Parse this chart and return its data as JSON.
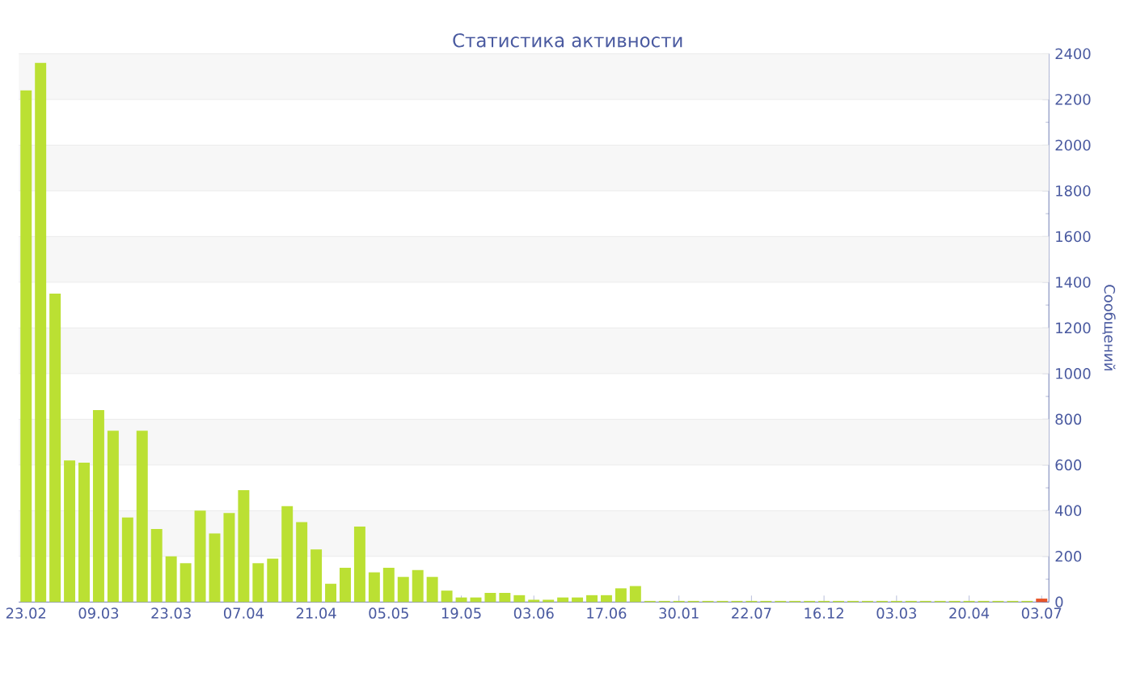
{
  "chart_data": {
    "type": "bar",
    "title": "Статистика активности",
    "ylabel": "Сообщений",
    "categories": [
      "23.02",
      null,
      null,
      null,
      null,
      "09.03",
      null,
      null,
      null,
      null,
      "23.03",
      null,
      null,
      null,
      null,
      "07.04",
      null,
      null,
      null,
      null,
      "21.04",
      null,
      null,
      null,
      null,
      "05.05",
      null,
      null,
      null,
      null,
      "19.05",
      null,
      null,
      null,
      null,
      "03.06",
      null,
      null,
      null,
      null,
      "17.06",
      null,
      null,
      null,
      null,
      "30.01",
      null,
      null,
      null,
      null,
      "22.07",
      null,
      null,
      null,
      null,
      "16.12",
      null,
      null,
      null,
      null,
      "03.03",
      null,
      null,
      null,
      null,
      "20.04",
      null,
      null,
      null,
      null,
      "03.07"
    ],
    "values": [
      2240,
      2360,
      1350,
      620,
      610,
      840,
      750,
      370,
      750,
      320,
      200,
      170,
      400,
      300,
      390,
      490,
      170,
      190,
      420,
      350,
      230,
      80,
      150,
      330,
      130,
      150,
      110,
      140,
      110,
      50,
      20,
      20,
      40,
      40,
      30,
      10,
      10,
      20,
      20,
      30,
      30,
      60,
      70,
      5,
      5,
      5,
      5,
      5,
      5,
      5,
      5,
      5,
      5,
      5,
      5,
      5,
      5,
      5,
      5,
      5,
      5,
      5,
      5,
      5,
      5,
      5,
      5,
      5,
      5,
      5,
      15
    ],
    "colors": [
      "#bbe033",
      "#bbe033",
      "#bbe033",
      "#bbe033",
      "#bbe033",
      "#bbe033",
      "#bbe033",
      "#bbe033",
      "#bbe033",
      "#bbe033",
      "#bbe033",
      "#bbe033",
      "#bbe033",
      "#bbe033",
      "#bbe033",
      "#bbe033",
      "#bbe033",
      "#bbe033",
      "#bbe033",
      "#bbe033",
      "#bbe033",
      "#bbe033",
      "#bbe033",
      "#bbe033",
      "#bbe033",
      "#bbe033",
      "#bbe033",
      "#bbe033",
      "#bbe033",
      "#bbe033",
      "#bbe033",
      "#bbe033",
      "#bbe033",
      "#bbe033",
      "#bbe033",
      "#bbe033",
      "#bbe033",
      "#bbe033",
      "#bbe033",
      "#bbe033",
      "#bbe033",
      "#bbe033",
      "#bbe033",
      "#bbe033",
      "#bbe033",
      "#bbe033",
      "#bbe033",
      "#bbe033",
      "#bbe033",
      "#bbe033",
      "#bbe033",
      "#bbe033",
      "#bbe033",
      "#bbe033",
      "#bbe033",
      "#bbe033",
      "#bbe033",
      "#bbe033",
      "#bbe033",
      "#bbe033",
      "#bbe033",
      "#bbe033",
      "#bbe033",
      "#bbe033",
      "#bbe033",
      "#bbe033",
      "#bbe033",
      "#bbe033",
      "#bbe033",
      "#bbe033",
      "#e8552a"
    ],
    "ylim": [
      0,
      2400
    ],
    "yticks": [
      0,
      200,
      400,
      600,
      800,
      1000,
      1200,
      1400,
      1600,
      1800,
      2000,
      2200,
      2400
    ],
    "grid": "y"
  }
}
